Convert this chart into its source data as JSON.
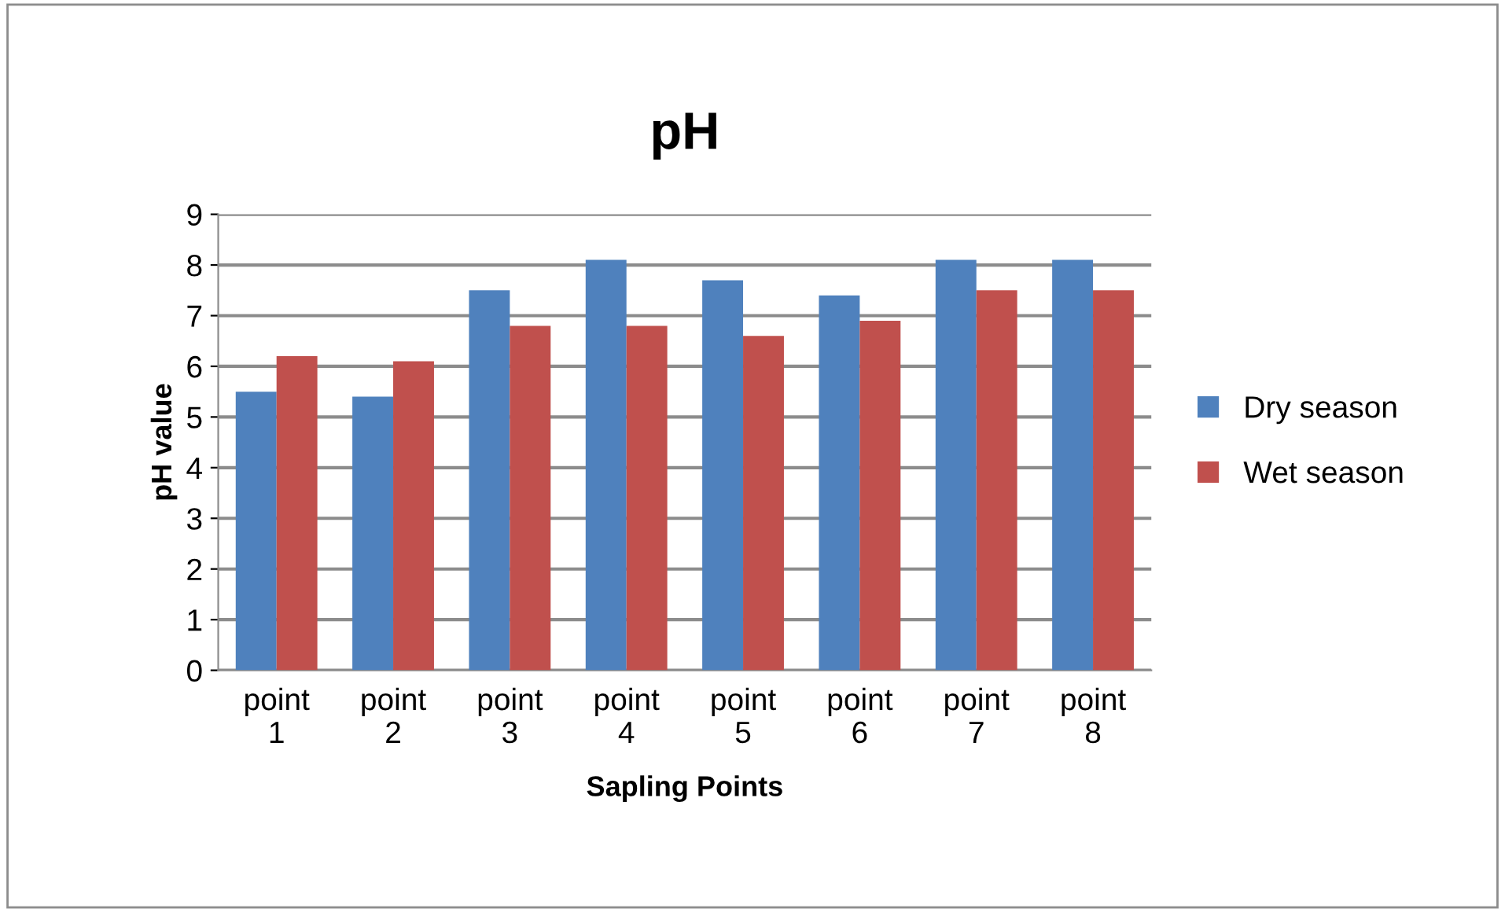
{
  "chart_data": {
    "type": "bar",
    "title": "pH",
    "xlabel": "Sapling Points",
    "ylabel": "pH value",
    "categories": [
      "point 1",
      "point 2",
      "point 3",
      "point 4",
      "point 5",
      "point 6",
      "point 7",
      "point 8"
    ],
    "series": [
      {
        "name": "Dry season",
        "color": "#4f81bd",
        "values": [
          5.5,
          5.4,
          7.5,
          8.1,
          7.7,
          7.4,
          8.1,
          8.1
        ]
      },
      {
        "name": "Wet season",
        "color": "#c0504d",
        "values": [
          6.2,
          6.1,
          6.8,
          6.8,
          6.6,
          6.9,
          7.5,
          7.5
        ]
      }
    ],
    "ylim": [
      0,
      9
    ],
    "yticks": [
      0,
      1,
      2,
      3,
      4,
      5,
      6,
      7,
      8,
      9
    ],
    "grid": "y",
    "legend": "right"
  }
}
